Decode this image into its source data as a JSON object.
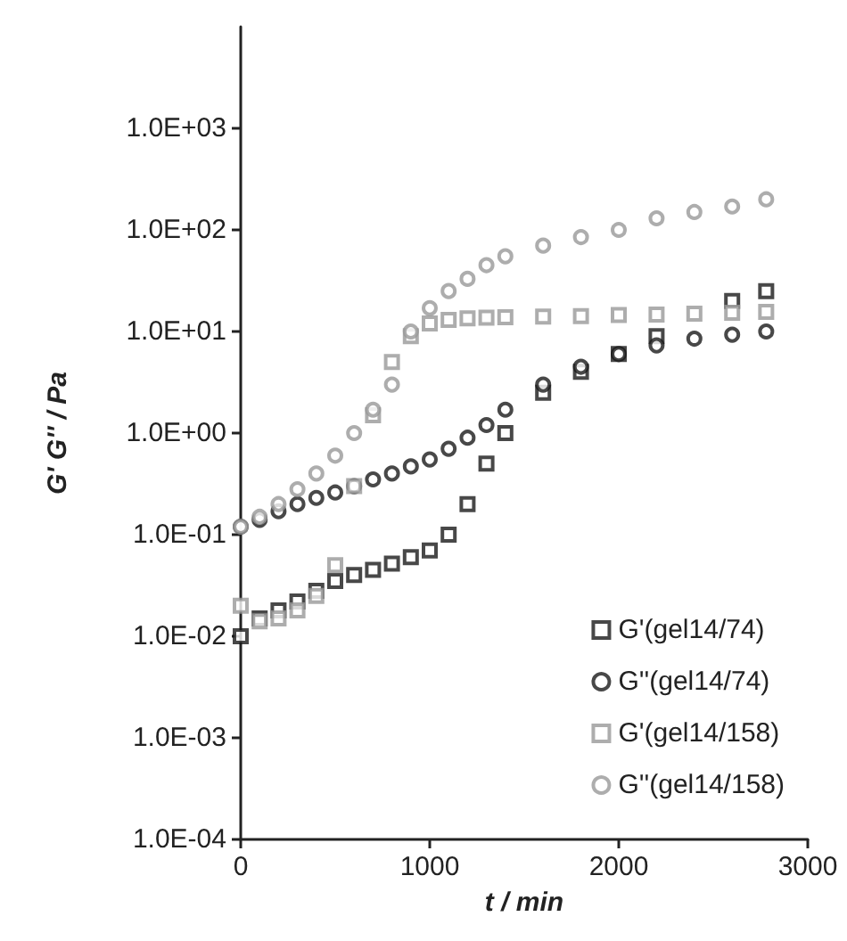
{
  "chart_data": {
    "type": "scatter",
    "xlabel": "t / min",
    "ylabel": "G' G'' / Pa",
    "xlim": [
      0,
      3000
    ],
    "xticks": [
      0,
      1000,
      2000,
      3000
    ],
    "ylim": [
      0.0001,
      10000
    ],
    "log": "y",
    "yticks": [
      {
        "value": 0.0001,
        "label": "1.0E-04"
      },
      {
        "value": 0.001,
        "label": "1.0E-03"
      },
      {
        "value": 0.01,
        "label": "1.0E-02"
      },
      {
        "value": 0.1,
        "label": "1.0E-01"
      },
      {
        "value": 1,
        "label": "1.0E+00"
      },
      {
        "value": 10,
        "label": "1.0E+01"
      },
      {
        "value": 100,
        "label": "1.0E+02"
      },
      {
        "value": 1000,
        "label": "1.0E+03"
      }
    ],
    "grid": false,
    "legend": "bottom right",
    "x": [
      0,
      100,
      200,
      300,
      400,
      500,
      600,
      700,
      800,
      900,
      1000,
      1100,
      1200,
      1300,
      1400,
      1600,
      1800,
      2000,
      2200,
      2400,
      2600,
      2780
    ],
    "series": [
      {
        "name": "G'(gel14/74)",
        "color": "#1a1a1a",
        "marker": "square",
        "values": [
          0.01,
          0.015,
          0.018,
          0.022,
          0.028,
          0.035,
          0.04,
          0.045,
          0.052,
          0.06,
          0.07,
          0.1,
          0.2,
          0.5,
          1,
          2.5,
          4,
          6,
          9,
          null,
          20,
          25
        ]
      },
      {
        "name": "G''(gel14/74)",
        "color": "#1a1a1a",
        "marker": "circle",
        "values": [
          0.12,
          0.14,
          0.17,
          0.2,
          0.23,
          0.26,
          0.3,
          0.35,
          0.4,
          0.47,
          0.55,
          0.7,
          0.9,
          1.2,
          1.7,
          3,
          4.5,
          6,
          7.3,
          8.5,
          9.3,
          10
        ]
      },
      {
        "name": "G'(gel14/158)",
        "color": "#999999",
        "marker": "square",
        "values": [
          0.02,
          0.014,
          0.015,
          0.018,
          0.025,
          0.05,
          0.3,
          1.5,
          5,
          9,
          12,
          13,
          13.5,
          13.7,
          13.8,
          14,
          14.2,
          14.5,
          14.7,
          15,
          15.3,
          15.6
        ]
      },
      {
        "name": "G''(gel14/158)",
        "color": "#999999",
        "marker": "circle",
        "values": [
          0.12,
          0.15,
          0.2,
          0.28,
          0.4,
          0.6,
          1,
          1.7,
          3,
          10,
          17,
          25,
          33,
          45,
          55,
          70,
          85,
          100,
          130,
          150,
          170,
          200
        ]
      }
    ]
  }
}
